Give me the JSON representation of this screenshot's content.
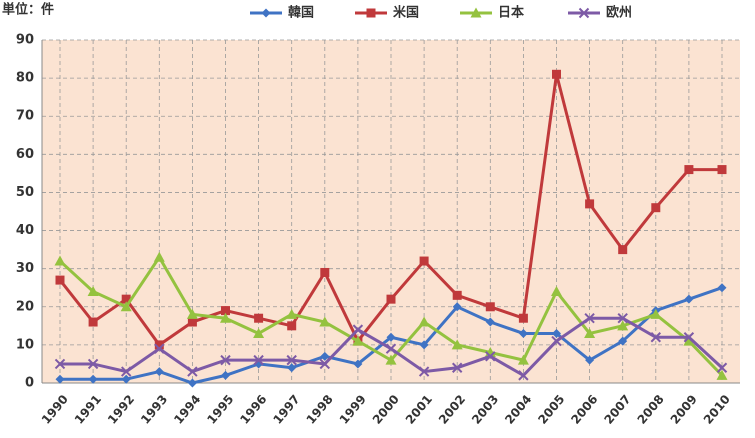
{
  "chart_data": {
    "type": "line",
    "title": "単位：件",
    "categories": [
      "1990",
      "1991",
      "1992",
      "1993",
      "1994",
      "1995",
      "1996",
      "1997",
      "1998",
      "1999",
      "2000",
      "2001",
      "2002",
      "2003",
      "2004",
      "2005",
      "2006",
      "2007",
      "2008",
      "2009",
      "2010"
    ],
    "series": [
      {
        "name": "韓国",
        "color": "#3f73c4",
        "marker": "diamond",
        "values": [
          1,
          1,
          1,
          3,
          0,
          2,
          5,
          4,
          7,
          5,
          12,
          10,
          20,
          16,
          13,
          13,
          6,
          11,
          19,
          22,
          25
        ]
      },
      {
        "name": "米国",
        "color": "#c0393b",
        "marker": "square",
        "values": [
          27,
          16,
          22,
          10,
          16,
          19,
          17,
          15,
          29,
          11,
          22,
          32,
          23,
          20,
          17,
          81,
          47,
          35,
          46,
          56,
          56
        ]
      },
      {
        "name": "日本",
        "color": "#94c23f",
        "marker": "triangle",
        "values": [
          32,
          24,
          20,
          33,
          18,
          17,
          13,
          18,
          16,
          11,
          6,
          16,
          10,
          8,
          6,
          24,
          13,
          15,
          18,
          11,
          2
        ]
      },
      {
        "name": "欧州",
        "color": "#7d5aa6",
        "marker": "x",
        "values": [
          5,
          5,
          3,
          9,
          3,
          6,
          6,
          6,
          5,
          14,
          9,
          3,
          4,
          7,
          2,
          11,
          17,
          17,
          12,
          12,
          4
        ]
      }
    ],
    "ylim": [
      0,
      90
    ],
    "yticks": [
      0,
      10,
      20,
      30,
      40,
      50,
      60,
      70,
      80,
      90
    ],
    "grid": true,
    "legend": "top",
    "background": "#fbe3d2"
  }
}
